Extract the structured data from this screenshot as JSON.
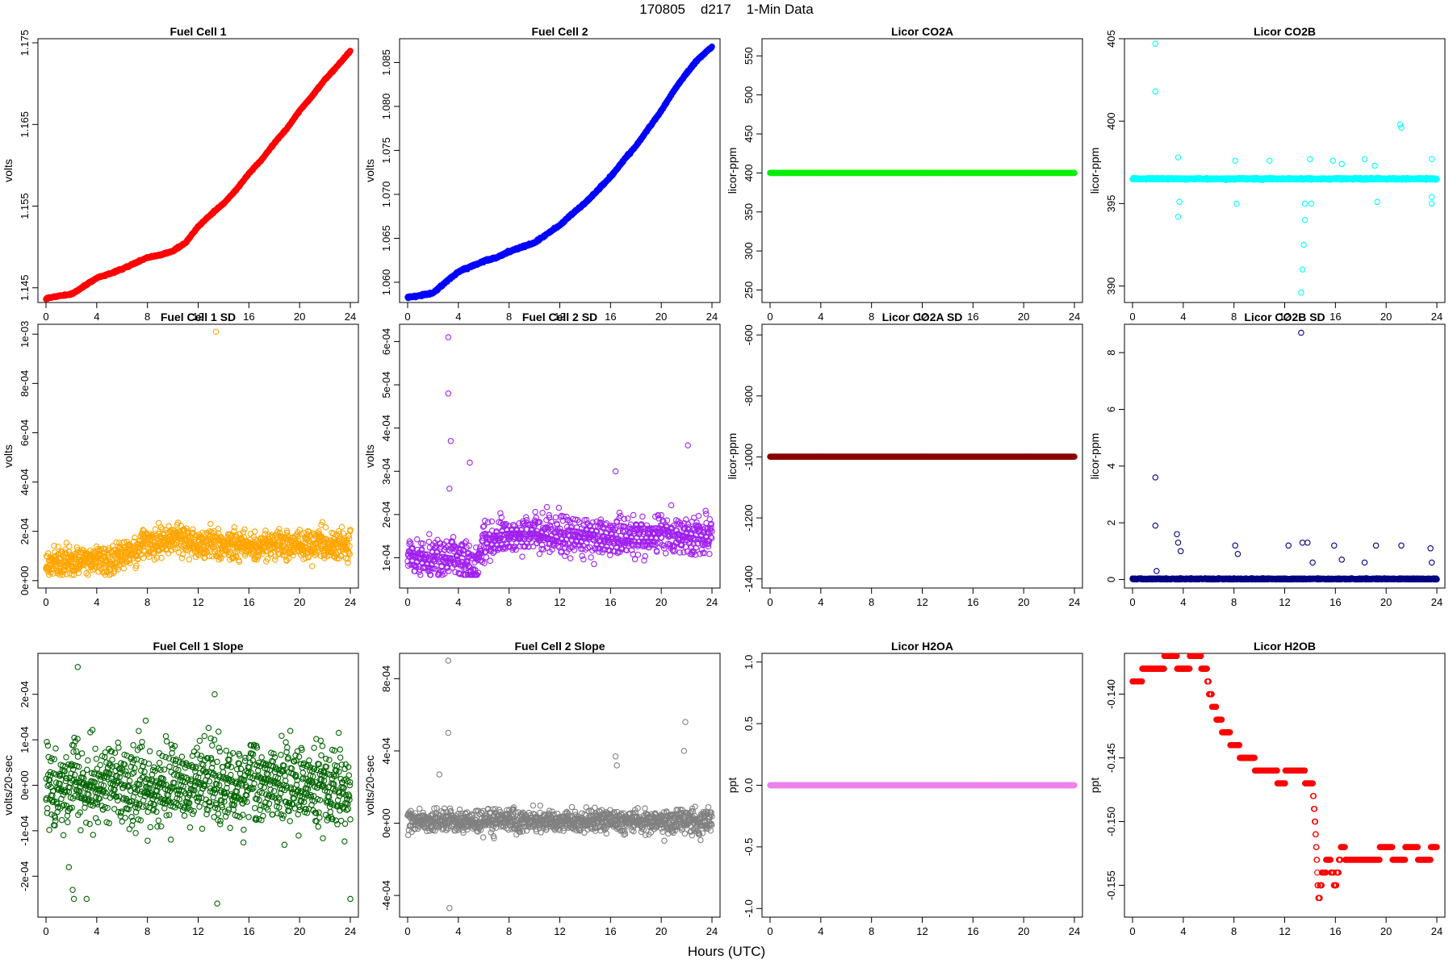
{
  "figure": {
    "title": "170805    d217    1-Min Data",
    "xlabel": "Hours (UTC)"
  },
  "chart_data": [
    {
      "type": "scatter",
      "title": "Fuel Cell 1",
      "ylabel": "volts",
      "color": "#ff0000",
      "xlim": [
        0,
        24
      ],
      "xticks": [
        0,
        4,
        8,
        12,
        16,
        20,
        24
      ],
      "ylim": [
        1.1432,
        1.1755
      ],
      "yticks": [
        1.145,
        1.155,
        1.165,
        1.175
      ],
      "ytick_labels": [
        "1.145",
        "1.155",
        "1.165",
        "1.175"
      ],
      "series": [
        {
          "x": [
            0,
            1,
            2,
            3,
            4,
            5,
            6,
            7,
            8,
            9,
            10,
            11,
            12,
            13,
            14,
            15,
            16,
            17,
            18,
            19,
            20,
            21,
            22,
            23,
            24
          ],
          "y": [
            1.1437,
            1.144,
            1.1442,
            1.1452,
            1.1462,
            1.1467,
            1.1473,
            1.148,
            1.1487,
            1.149,
            1.1495,
            1.1505,
            1.1525,
            1.154,
            1.1553,
            1.157,
            1.159,
            1.1607,
            1.1627,
            1.1645,
            1.1667,
            1.1685,
            1.1705,
            1.1722,
            1.174
          ]
        }
      ]
    },
    {
      "type": "scatter",
      "title": "Fuel Cell 2",
      "ylabel": "volts",
      "color": "#0000ff",
      "xlim": [
        0,
        24
      ],
      "xticks": [
        0,
        4,
        8,
        12,
        16,
        20,
        24
      ],
      "ylim": [
        1.0577,
        1.0877
      ],
      "yticks": [
        1.06,
        1.065,
        1.07,
        1.075,
        1.08,
        1.085
      ],
      "ytick_labels": [
        "1.060",
        "1.065",
        "1.070",
        "1.075",
        "1.080",
        "1.085"
      ],
      "series": [
        {
          "x": [
            0,
            1,
            2,
            3,
            4,
            5,
            6,
            7,
            8,
            9,
            10,
            11,
            12,
            13,
            14,
            15,
            16,
            17,
            18,
            19,
            20,
            21,
            22,
            23,
            24
          ],
          "y": [
            1.0583,
            1.0585,
            1.0588,
            1.06,
            1.0612,
            1.0618,
            1.0624,
            1.0628,
            1.0635,
            1.064,
            1.0645,
            1.0655,
            1.0665,
            1.0678,
            1.069,
            1.0705,
            1.072,
            1.0738,
            1.0755,
            1.0775,
            1.0795,
            1.0818,
            1.0838,
            1.0855,
            1.0868
          ]
        }
      ]
    },
    {
      "type": "scatter",
      "title": "Licor CO2A",
      "ylabel": "licor-ppm",
      "color": "#00ee00",
      "xlim": [
        0,
        24
      ],
      "xticks": [
        0,
        4,
        8,
        12,
        16,
        20,
        24
      ],
      "ylim": [
        234,
        572
      ],
      "yticks": [
        250,
        300,
        350,
        400,
        450,
        500,
        550
      ],
      "ytick_labels": [
        "250",
        "300",
        "350",
        "400",
        "450",
        "500",
        "550"
      ],
      "series": [
        {
          "x": [
            0,
            24
          ],
          "y": [
            400,
            400
          ]
        }
      ]
    },
    {
      "type": "scatter",
      "title": "Licor CO2B",
      "ylabel": "licor-ppm",
      "color": "#00ffff",
      "xlim": [
        0,
        24
      ],
      "xticks": [
        0,
        4,
        8,
        12,
        16,
        20,
        24
      ],
      "ylim": [
        389,
        405
      ],
      "yticks": [
        390,
        395,
        400,
        405
      ],
      "ytick_labels": [
        "390",
        "395",
        "400",
        "405"
      ],
      "series": [
        {
          "x": [
            0,
            24
          ],
          "y": [
            396.5,
            396.5
          ]
        }
      ],
      "outliers": [
        [
          1.8,
          404.7
        ],
        [
          1.8,
          401.8
        ],
        [
          3.6,
          397.8
        ],
        [
          3.6,
          394.2
        ],
        [
          3.7,
          395.1
        ],
        [
          8.1,
          397.6
        ],
        [
          8.2,
          395.0
        ],
        [
          10.8,
          397.6
        ],
        [
          13.3,
          389.6
        ],
        [
          13.4,
          391.0
        ],
        [
          13.5,
          392.5
        ],
        [
          13.6,
          394.0
        ],
        [
          13.6,
          395.0
        ],
        [
          14.0,
          397.7
        ],
        [
          14.1,
          395.0
        ],
        [
          15.8,
          397.6
        ],
        [
          16.5,
          397.4
        ],
        [
          18.3,
          397.7
        ],
        [
          19.1,
          397.3
        ],
        [
          19.3,
          395.1
        ],
        [
          21.1,
          399.8
        ],
        [
          21.2,
          399.6
        ],
        [
          23.6,
          397.7
        ],
        [
          23.6,
          395.0
        ],
        [
          23.6,
          395.4
        ]
      ]
    },
    {
      "type": "scatter",
      "title": "Fuel Cell 1 SD",
      "ylabel": "volts",
      "color": "#ffa500",
      "xlim": [
        0,
        24
      ],
      "xticks": [
        0,
        4,
        8,
        12,
        16,
        20,
        24
      ],
      "ylim": [
        -3e-05,
        0.00104
      ],
      "yticks": [
        0,
        0.0002,
        0.0004,
        0.0006,
        0.0008,
        0.001
      ],
      "ytick_labels": [
        "0e+00",
        "2e-04",
        "4e-04",
        "6e-04",
        "8e-04",
        "1e-03"
      ],
      "series": [
        {
          "x": [
            0,
            2,
            4,
            5.5,
            6,
            7,
            8,
            10,
            12,
            14,
            16,
            18,
            20,
            22,
            24
          ],
          "y": [
            7e-05,
            8e-05,
            8e-05,
            9e-05,
            0.00012,
            0.00012,
            0.00015,
            0.00017,
            0.00015,
            0.00015,
            0.00014,
            0.00014,
            0.00015,
            0.00014,
            0.00014
          ]
        }
      ],
      "outliers": [
        [
          13.4,
          0.00101
        ]
      ]
    },
    {
      "type": "scatter",
      "title": "Fuel Cell 2 SD",
      "ylabel": "volts",
      "color": "#a020f0",
      "xlim": [
        0,
        24
      ],
      "xticks": [
        0,
        4,
        8,
        12,
        16,
        20,
        24
      ],
      "ylim": [
        3e-05,
        0.00064
      ],
      "yticks": [
        0.0001,
        0.0002,
        0.0003,
        0.0004,
        0.0005,
        0.0006
      ],
      "ytick_labels": [
        "1e-04",
        "2e-04",
        "3e-04",
        "4e-04",
        "5e-04",
        "6e-04"
      ],
      "series": [
        {
          "x": [
            0,
            2,
            4,
            5.5,
            6,
            7,
            8,
            10,
            12,
            14,
            16,
            18,
            20,
            22,
            24
          ],
          "y": [
            0.0001,
            0.0001,
            0.0001,
            8e-05,
            0.00014,
            0.00014,
            0.00015,
            0.00016,
            0.00015,
            0.00015,
            0.00015,
            0.00015,
            0.00016,
            0.00015,
            0.00015
          ]
        }
      ],
      "outliers": [
        [
          3.2,
          0.00061
        ],
        [
          3.2,
          0.00048
        ],
        [
          3.4,
          0.00037
        ],
        [
          3.3,
          0.00026
        ],
        [
          4.9,
          0.00032
        ],
        [
          16.4,
          0.0003
        ],
        [
          22.1,
          0.00036
        ]
      ]
    },
    {
      "type": "scatter",
      "title": "Licor CO2A SD",
      "ylabel": "licor-ppm",
      "color": "#8b0000",
      "xlim": [
        0,
        24
      ],
      "xticks": [
        0,
        4,
        8,
        12,
        16,
        20,
        24
      ],
      "ylim": [
        -1430,
        -565
      ],
      "yticks": [
        -1400,
        -1200,
        -1000,
        -800,
        -600
      ],
      "ytick_labels": [
        "-1400",
        "-1200",
        "-1000",
        "-800",
        "-600"
      ],
      "series": [
        {
          "x": [
            0,
            24
          ],
          "y": [
            -999,
            -999
          ]
        }
      ]
    },
    {
      "type": "scatter",
      "title": "Licor CO2B SD",
      "ylabel": "licor-ppm",
      "color": "#000080",
      "xlim": [
        0,
        24
      ],
      "xticks": [
        0,
        4,
        8,
        12,
        16,
        20,
        24
      ],
      "ylim": [
        -0.3,
        9.0
      ],
      "yticks": [
        0,
        2,
        4,
        6,
        8
      ],
      "ytick_labels": [
        "0",
        "2",
        "4",
        "6",
        "8"
      ],
      "series": [
        {
          "x": [
            0,
            24
          ],
          "y": [
            0.02,
            0.02
          ]
        }
      ],
      "outliers": [
        [
          1.8,
          3.6
        ],
        [
          1.8,
          1.9
        ],
        [
          1.9,
          0.3
        ],
        [
          3.5,
          1.6
        ],
        [
          3.6,
          1.3
        ],
        [
          3.8,
          1.0
        ],
        [
          8.1,
          1.2
        ],
        [
          8.3,
          0.9
        ],
        [
          12.3,
          1.2
        ],
        [
          13.3,
          8.7
        ],
        [
          13.4,
          1.3
        ],
        [
          13.8,
          1.3
        ],
        [
          14.2,
          0.6
        ],
        [
          15.9,
          1.2
        ],
        [
          16.5,
          0.7
        ],
        [
          18.3,
          0.6
        ],
        [
          19.2,
          1.2
        ],
        [
          21.2,
          1.2
        ],
        [
          23.5,
          1.1
        ],
        [
          23.6,
          0.6
        ]
      ]
    },
    {
      "type": "scatter",
      "title": "Fuel Cell 1 Slope",
      "ylabel": "volts/20-sec",
      "color": "#006400",
      "xlim": [
        0,
        24
      ],
      "xticks": [
        0,
        4,
        8,
        12,
        16,
        20,
        24
      ],
      "ylim": [
        -0.00029,
        0.00029
      ],
      "yticks": [
        -0.0002,
        -0.0001,
        0,
        0.0001,
        0.0002
      ],
      "ytick_labels": [
        "-2e-04",
        "-1e-04",
        "0e+00",
        "1e-04",
        "2e-04"
      ],
      "series": [
        {
          "x": [
            0,
            4,
            8,
            12,
            16,
            20,
            24
          ],
          "y": [
            0,
            0,
            0,
            0,
            0,
            0,
            0
          ]
        }
      ],
      "outliers": [
        [
          2.5,
          0.00026
        ],
        [
          1.8,
          -0.00018
        ],
        [
          2.1,
          -0.00023
        ],
        [
          2.2,
          -0.00025
        ],
        [
          3.2,
          -0.00025
        ],
        [
          13.5,
          -0.00026
        ],
        [
          24,
          -0.00025
        ],
        [
          13.3,
          0.0002
        ]
      ]
    },
    {
      "type": "scatter",
      "title": "Fuel Cell 2 Slope",
      "ylabel": "volts/20-sec",
      "color": "#808080",
      "xlim": [
        0,
        24
      ],
      "xticks": [
        0,
        4,
        8,
        12,
        16,
        20,
        24
      ],
      "ylim": [
        -0.00052,
        0.00094
      ],
      "yticks": [
        -0.0004,
        0,
        0.0004,
        0.0008
      ],
      "ytick_labels": [
        "-4e-04",
        "0e+00",
        "4e-04",
        "8e-04"
      ],
      "series": [
        {
          "x": [
            0,
            4,
            8,
            12,
            16,
            20,
            24
          ],
          "y": [
            1e-05,
            1e-05,
            1e-05,
            1e-05,
            1e-05,
            1e-05,
            1e-05
          ]
        }
      ],
      "outliers": [
        [
          3.2,
          0.0009
        ],
        [
          3.2,
          0.0005
        ],
        [
          3.3,
          -0.00047
        ],
        [
          16.4,
          0.00037
        ],
        [
          16.5,
          0.00032
        ],
        [
          21.9,
          0.00056
        ],
        [
          21.8,
          0.0004
        ],
        [
          2.5,
          0.00027
        ]
      ]
    },
    {
      "type": "scatter",
      "title": "Licor H2OA",
      "ylabel": "ppt",
      "color": "#ee82ee",
      "xlim": [
        0,
        24
      ],
      "xticks": [
        0,
        4,
        8,
        12,
        16,
        20,
        24
      ],
      "ylim": [
        -1.07,
        1.07
      ],
      "yticks": [
        -1,
        -0.5,
        0,
        0.5,
        1
      ],
      "ytick_labels": [
        "-1.0",
        "-0.5",
        "0.0",
        "0.5",
        "1.0"
      ],
      "series": [
        {
          "x": [
            0,
            24
          ],
          "y": [
            0,
            0
          ]
        }
      ]
    },
    {
      "type": "scatter",
      "title": "Licor H2OB",
      "ylabel": "ppt",
      "color": "#ff0000",
      "xlim": [
        0,
        24
      ],
      "xticks": [
        0,
        4,
        8,
        12,
        16,
        20,
        24
      ],
      "ylim": [
        -0.1575,
        -0.1368
      ],
      "yticks": [
        -0.155,
        -0.15,
        -0.145,
        -0.14
      ],
      "ytick_labels": [
        "-0.155",
        "-0.150",
        "-0.145",
        "-0.140"
      ],
      "series": [
        {
          "x": [
            0,
            0.5,
            1,
            2,
            3,
            4,
            5,
            5.8,
            6.1,
            6.4,
            6.8,
            7.3,
            8.1,
            8.8,
            9.3,
            10,
            11,
            11.8,
            12.3,
            13,
            14.2,
            14.4,
            14.5,
            14.6,
            14.7,
            15,
            15.5,
            16,
            16.5,
            17,
            17.5,
            18,
            19,
            20,
            21,
            22,
            23,
            24
          ],
          "y": [
            -0.139,
            -0.139,
            -0.138,
            -0.138,
            -0.137,
            -0.138,
            -0.137,
            -0.138,
            -0.14,
            -0.141,
            -0.142,
            -0.143,
            -0.144,
            -0.145,
            -0.145,
            -0.146,
            -0.146,
            -0.147,
            -0.146,
            -0.146,
            -0.147,
            -0.15,
            -0.152,
            -0.155,
            -0.156,
            -0.154,
            -0.153,
            -0.155,
            -0.152,
            -0.153,
            -0.153,
            -0.153,
            -0.153,
            -0.152,
            -0.153,
            -0.152,
            -0.153,
            -0.152
          ]
        }
      ]
    }
  ]
}
